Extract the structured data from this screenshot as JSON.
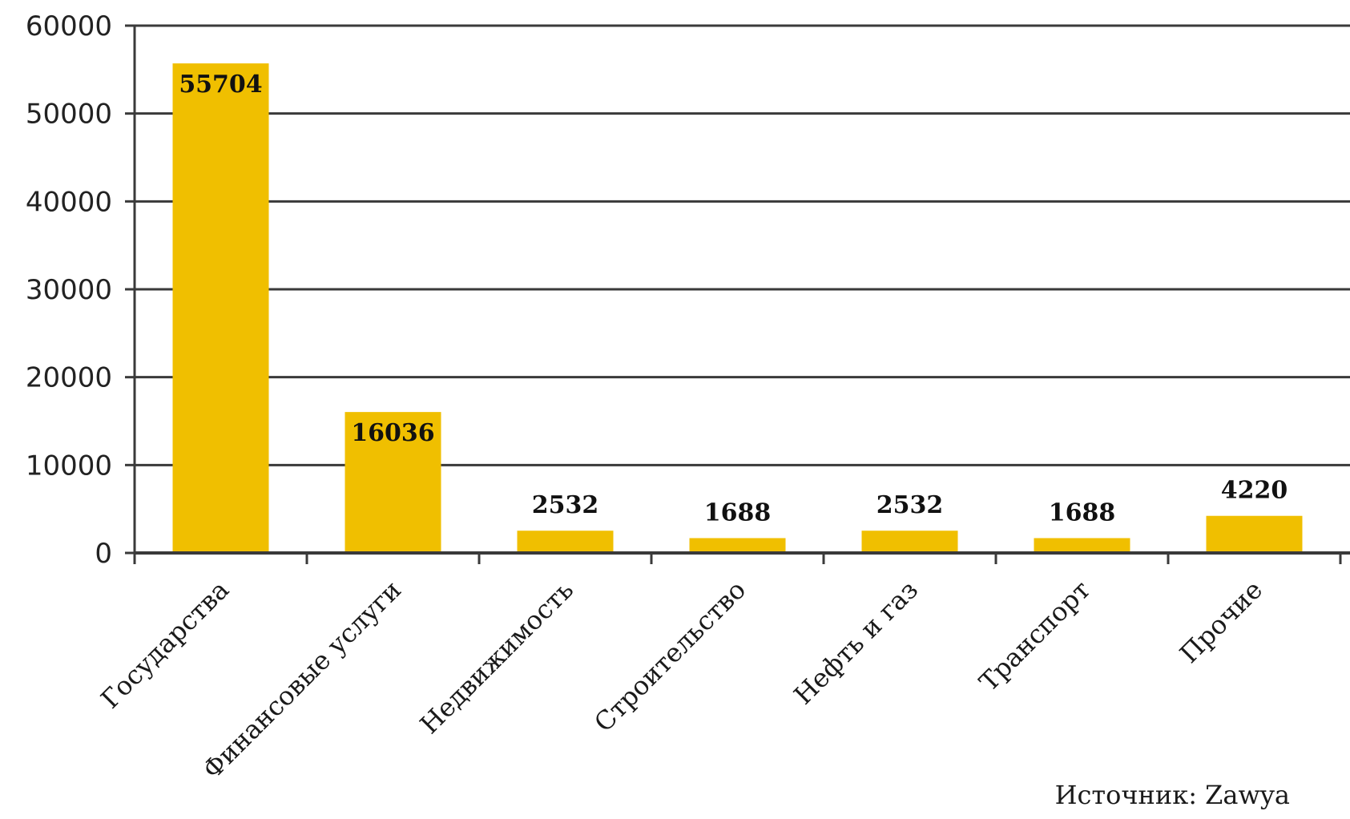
{
  "chart_data": {
    "type": "bar",
    "categories": [
      "Государства",
      "Финансовые услуги",
      "Недвижимость",
      "Строительство",
      "Нефть и газ",
      "Транспорт",
      "Прочие"
    ],
    "values": [
      55704,
      16036,
      2532,
      1688,
      2532,
      1688,
      4220
    ],
    "data_labels": [
      "55704",
      "16036",
      "2532",
      "1688",
      "2532",
      "1688",
      "4220"
    ],
    "ylim": [
      0,
      60000
    ],
    "yticks": [
      0,
      10000,
      20000,
      30000,
      40000,
      50000,
      60000
    ],
    "ytick_labels": [
      "0",
      "10000",
      "20000",
      "30000",
      "40000",
      "50000",
      "60000"
    ],
    "grid": true,
    "title": "",
    "xlabel": "",
    "ylabel": "",
    "source": "Источник: Zawya",
    "bar_color": "#f0bf00"
  }
}
